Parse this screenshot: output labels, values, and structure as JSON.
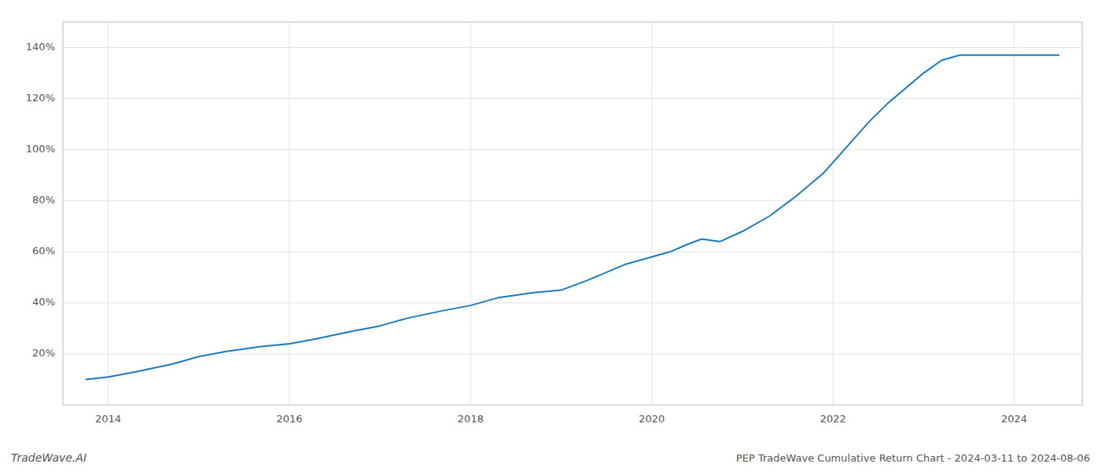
{
  "chart_data": {
    "type": "line",
    "title": "PEP TradeWave Cumulative Return Chart - 2024-03-11 to 2024-08-06",
    "watermark": "TradeWave.AI",
    "color": "#1a7abf",
    "grid": true,
    "xlim": [
      2013.5,
      2024.75
    ],
    "xticks": [
      2014,
      2016,
      2018,
      2020,
      2022,
      2024
    ],
    "ylim": [
      0,
      150
    ],
    "yticks": [
      {
        "value": 20,
        "label": "20%"
      },
      {
        "value": 40,
        "label": "40%"
      },
      {
        "value": 60,
        "label": "60%"
      },
      {
        "value": 80,
        "label": "80%"
      },
      {
        "value": 100,
        "label": "100%"
      },
      {
        "value": 120,
        "label": "120%"
      },
      {
        "value": 140,
        "label": "140%"
      }
    ],
    "x": [
      2013.75,
      2014.0,
      2014.3,
      2014.7,
      2015.0,
      2015.3,
      2015.7,
      2016.0,
      2016.3,
      2016.7,
      2017.0,
      2017.3,
      2017.7,
      2018.0,
      2018.3,
      2018.7,
      2019.0,
      2019.3,
      2019.7,
      2020.0,
      2020.2,
      2020.4,
      2020.55,
      2020.75,
      2021.0,
      2021.3,
      2021.6,
      2021.9,
      2022.0,
      2022.2,
      2022.4,
      2022.6,
      2022.8,
      2023.0,
      2023.2,
      2023.4,
      2023.6,
      2024.0,
      2024.5
    ],
    "values": [
      10,
      11,
      13,
      16,
      19,
      21,
      23,
      24,
      26,
      29,
      31,
      34,
      37,
      39,
      42,
      44,
      45,
      49,
      55,
      58,
      60,
      63,
      65,
      64,
      68,
      74,
      82,
      91,
      95,
      103,
      111,
      118,
      124,
      130,
      135,
      137,
      137,
      137,
      137
    ]
  }
}
